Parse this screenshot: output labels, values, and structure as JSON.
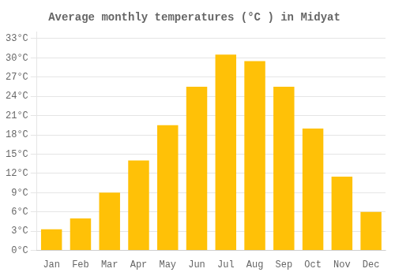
{
  "chart_data": {
    "type": "bar",
    "title": "Average monthly temperatures (°C ) in Midyat",
    "categories": [
      "Jan",
      "Feb",
      "Mar",
      "Apr",
      "May",
      "Jun",
      "Jul",
      "Aug",
      "Sep",
      "Oct",
      "Nov",
      "Dec"
    ],
    "values": [
      3.3,
      5.0,
      9.0,
      14.0,
      19.5,
      25.5,
      30.5,
      29.5,
      25.5,
      19.0,
      11.5,
      6.0
    ],
    "color": "#FFC107",
    "ylim": [
      0,
      34
    ],
    "yticks": [
      {
        "value": 0,
        "label": "0°C"
      },
      {
        "value": 3,
        "label": "3°C"
      },
      {
        "value": 6,
        "label": "6°C"
      },
      {
        "value": 9,
        "label": "9°C"
      },
      {
        "value": 12,
        "label": "12°C"
      },
      {
        "value": 15,
        "label": "15°C"
      },
      {
        "value": 18,
        "label": "18°C"
      },
      {
        "value": 21,
        "label": "21°C"
      },
      {
        "value": 24,
        "label": "24°C"
      },
      {
        "value": 27,
        "label": "27°C"
      },
      {
        "value": 30,
        "label": "30°C"
      },
      {
        "value": 33,
        "label": "33°C"
      }
    ],
    "grid": true
  }
}
